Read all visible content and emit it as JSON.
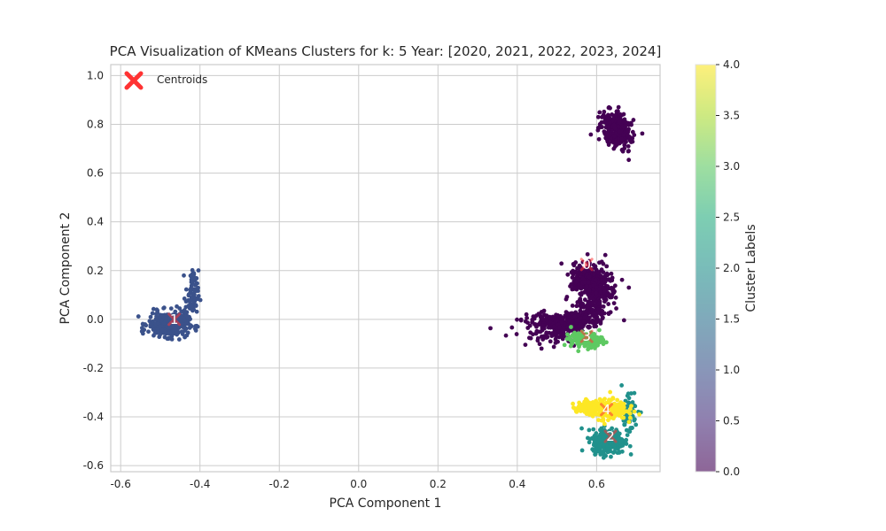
{
  "chart_data": {
    "type": "scatter",
    "title": "PCA Visualization of KMeans Clusters for k: 5 Year: [2020, 2021, 2022, 2023, 2024]",
    "xlabel": "PCA Component 1",
    "ylabel": "PCA Component 2",
    "xlim": [
      -0.625,
      0.76
    ],
    "ylim": [
      -0.625,
      1.045
    ],
    "xticks": [
      -0.6,
      -0.4,
      -0.2,
      0.0,
      0.2,
      0.4,
      0.6
    ],
    "yticks": [
      -0.6,
      -0.4,
      -0.2,
      0.0,
      0.2,
      0.4,
      0.6,
      0.8,
      1.0
    ],
    "grid": true,
    "legend": {
      "position": "top-left",
      "label": "Centroids",
      "marker": "X",
      "color": "#ff3333"
    },
    "colorbar": {
      "label": "Cluster Labels",
      "min": 0.0,
      "max": 4.0,
      "ticks": [
        "0.0",
        "0.5",
        "1.0",
        "1.5",
        "2.0",
        "2.5",
        "3.0",
        "3.5",
        "4.0"
      ],
      "colormap": "viridis"
    },
    "clusters": [
      {
        "label": 0,
        "color": "#440154",
        "regions": [
          {
            "cx": 0.65,
            "cy": 0.78,
            "sx": 0.022,
            "sy": 0.05,
            "n": 300,
            "tilt": 1.2
          },
          {
            "cx": 0.59,
            "cy": 0.14,
            "sx": 0.035,
            "sy": 0.07,
            "n": 450,
            "tilt": 2.0
          },
          {
            "cx": 0.54,
            "cy": -0.02,
            "sx": 0.05,
            "sy": 0.03,
            "n": 300,
            "tilt": 0.8
          },
          {
            "cx": 0.48,
            "cy": -0.01,
            "sx": 0.04,
            "sy": 0.02,
            "n": 100,
            "tilt": 0.2
          }
        ]
      },
      {
        "label": 1,
        "color": "#3b528b",
        "regions": [
          {
            "cx": -0.48,
            "cy": -0.02,
            "sx": 0.025,
            "sy": 0.025,
            "n": 380,
            "tilt": 0.0
          },
          {
            "cx": -0.42,
            "cy": 0.1,
            "sx": 0.008,
            "sy": 0.05,
            "n": 70,
            "tilt": 0.0
          }
        ]
      },
      {
        "label": 2,
        "color": "#21918c",
        "regions": [
          {
            "cx": 0.63,
            "cy": -0.5,
            "sx": 0.02,
            "sy": 0.025,
            "n": 300,
            "tilt": 0.0
          },
          {
            "cx": 0.68,
            "cy": -0.38,
            "sx": 0.012,
            "sy": 0.05,
            "n": 60,
            "tilt": 0.0
          }
        ]
      },
      {
        "label": 3,
        "color": "#5ec962",
        "regions": [
          {
            "cx": 0.575,
            "cy": -0.085,
            "sx": 0.02,
            "sy": 0.015,
            "n": 180,
            "tilt": 0.0
          }
        ]
      },
      {
        "label": 4,
        "color": "#fde725",
        "regions": [
          {
            "cx": 0.625,
            "cy": -0.37,
            "sx": 0.025,
            "sy": 0.02,
            "n": 300,
            "tilt": 0.0
          },
          {
            "cx": 0.58,
            "cy": -0.36,
            "sx": 0.02,
            "sy": 0.01,
            "n": 80,
            "tilt": 0.0
          }
        ]
      }
    ],
    "centroids": [
      {
        "label": "0",
        "x": 0.575,
        "y": 0.225
      },
      {
        "label": "1",
        "x": -0.465,
        "y": 0.0
      },
      {
        "label": "2",
        "x": 0.635,
        "y": -0.48
      },
      {
        "label": "3",
        "x": 0.575,
        "y": -0.07
      },
      {
        "label": "4",
        "x": 0.625,
        "y": -0.37
      }
    ]
  }
}
